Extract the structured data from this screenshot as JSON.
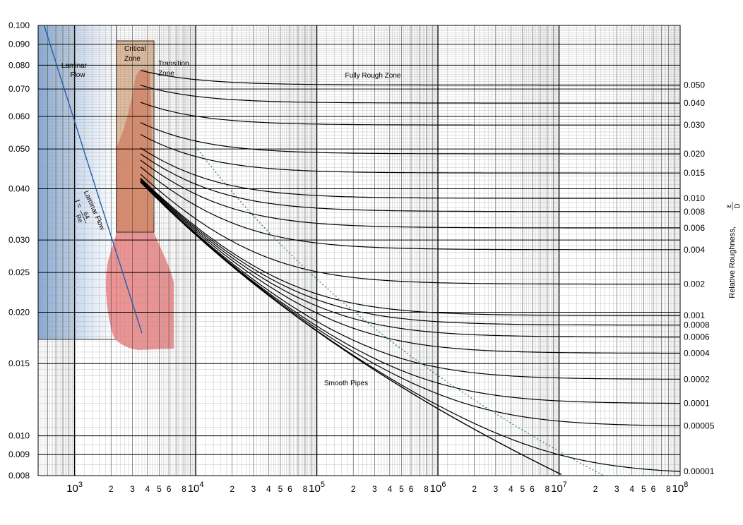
{
  "chart_data": {
    "type": "line",
    "x_scale": "log",
    "y_scale": "log",
    "xlim": [
      500,
      100000000
    ],
    "ylim": [
      0.008,
      0.1
    ],
    "grid": true,
    "y_ticks": [
      "0.100",
      "0.090",
      "0.080",
      "0.070",
      "0.060",
      "0.050",
      "0.040",
      "0.030",
      "0.025",
      "0.020",
      "0.015",
      "0.010",
      "0.009",
      "0.008"
    ],
    "x_tick_decades": [
      {
        "base": "10",
        "exp": "3"
      },
      {
        "base": "10",
        "exp": "4"
      },
      {
        "base": "10",
        "exp": "5"
      },
      {
        "base": "10",
        "exp": "6"
      },
      {
        "base": "10",
        "exp": "7"
      },
      {
        "base": "10",
        "exp": "8"
      }
    ],
    "x_minor_labels": [
      "2",
      "3",
      "4",
      "5",
      "6",
      "8"
    ],
    "right_axis_label": "Relative Roughness,",
    "right_axis_symbol": {
      "numerator": "ε",
      "denominator": "D"
    },
    "roughness_labels": [
      "0.050",
      "0.040",
      "0.030",
      "0.020",
      "0.015",
      "0.010",
      "0.008",
      "0.006",
      "0.004",
      "0.002",
      "0.001",
      "0.0008",
      "0.0006",
      "0.0004",
      "0.0002",
      "0.0001",
      "0.00005",
      "0.00001"
    ],
    "roughness_values": [
      0.05,
      0.04,
      0.03,
      0.02,
      0.015,
      0.01,
      0.008,
      0.006,
      0.004,
      0.002,
      0.001,
      0.0008,
      0.0006,
      0.0004,
      0.0002,
      0.0001,
      5e-05,
      1e-05
    ],
    "series": [
      {
        "kind": "laminar",
        "x_range": [
          560,
          3600
        ],
        "color": "#1f5fa8"
      },
      {
        "kind": "roughness-curves",
        "x_range": [
          3500,
          100000000
        ],
        "color": "#000000"
      },
      {
        "kind": "smooth-pipe",
        "x_range": [
          3500,
          40000000
        ],
        "color": "#000000"
      },
      {
        "kind": "fully-rough-boundary",
        "x_range": [
          10000,
          90000000
        ],
        "color": "#2e8b57"
      }
    ],
    "zones": {
      "laminar": {
        "label_line1": "Laminar",
        "label_line2": "Flow",
        "x_range": [
          560,
          2300
        ],
        "color": "#6f9bd1"
      },
      "critical": {
        "label_line1": "Critical",
        "label_line2": "Zone",
        "x_range": [
          2300,
          4000
        ],
        "color": "#c8844a"
      },
      "transition": {
        "label_line1": "Transition",
        "label_line2": "Zone",
        "color": "#ea8080"
      },
      "fully_rough": {
        "label": "Fully Rough Zone"
      },
      "smooth": {
        "label": "Smooth Pipes"
      }
    },
    "laminar_annotation": {
      "title": "Laminar Flow",
      "f_label": "f =",
      "numerator": "64",
      "denominator": "Re"
    }
  }
}
